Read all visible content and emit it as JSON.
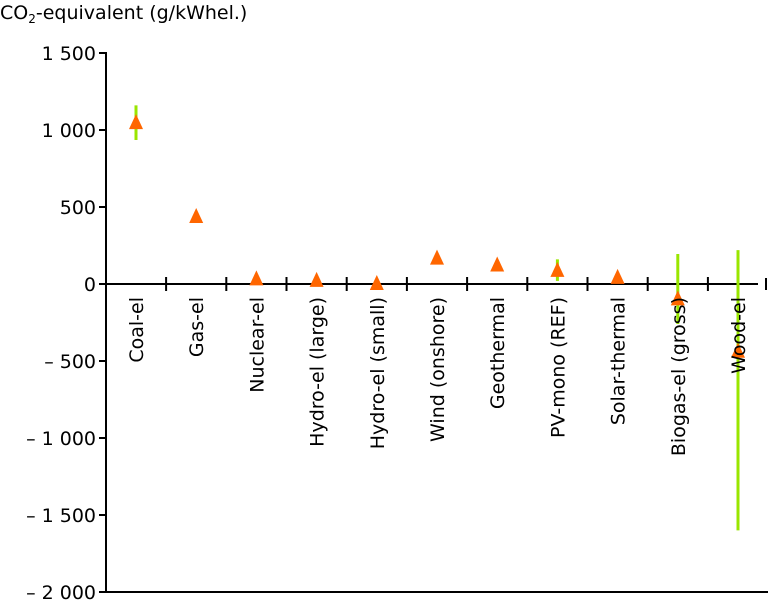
{
  "chart_data": {
    "type": "scatter",
    "title_main": "CO",
    "title_sub": "2",
    "title_rest": "-equivalent (g/kWhel.)",
    "ylabel": "CO2-equivalent (g/kWhel.)",
    "xlabel": "",
    "ylim": [
      -2000,
      1500
    ],
    "yticks": [
      1500,
      1000,
      500,
      0,
      -500,
      -1000,
      -1500,
      -2000
    ],
    "ytick_labels": [
      "1 500",
      "1 000",
      "500",
      "0",
      "– 500",
      "– 1 000",
      "– 1 500",
      "– 2 000"
    ],
    "grid": false,
    "categories": [
      "Coal-el",
      "Gas-el",
      "Nuclear-el",
      "Hydro-el (large)",
      "Hydro-el (small)",
      "Wind (onshore)",
      "Geothermal",
      "PV-mono (REF)",
      "Solar-thermal",
      "Biogas-el (gross)",
      "Wood-el"
    ],
    "series": [
      {
        "name": "Value",
        "marker": "triangle",
        "color": "#ff6600",
        "values": [
          1045,
          435,
          30,
          20,
          0,
          165,
          120,
          85,
          40,
          -100,
          -440
        ]
      },
      {
        "name": "Range",
        "marker": "bar",
        "color": "#99e600",
        "low": [
          935,
          null,
          null,
          null,
          null,
          null,
          null,
          20,
          null,
          -260,
          -1600
        ],
        "high": [
          1160,
          null,
          null,
          null,
          null,
          null,
          null,
          160,
          null,
          195,
          220
        ]
      }
    ]
  }
}
